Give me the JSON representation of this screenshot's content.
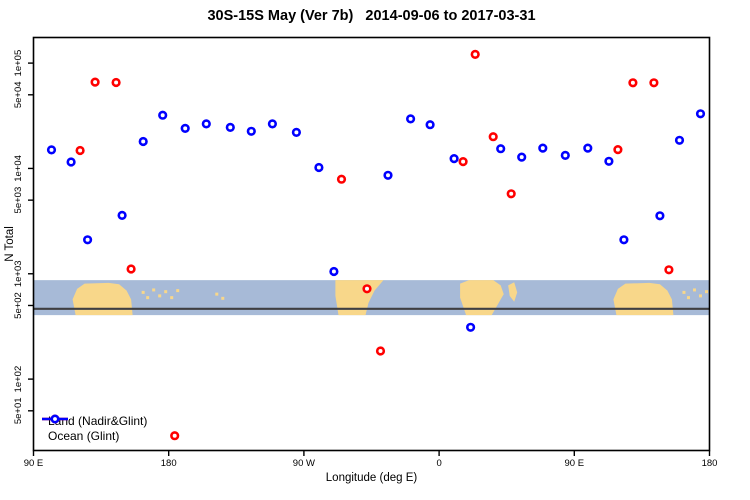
{
  "chart_data": {
    "type": "scatter",
    "title": "30S-15S May (Ver 7b)   2014-09-06 to 2017-03-31",
    "xlabel": "Longitude (deg E)",
    "ylabel": "N Total",
    "x_scale": "linear (longitude wrapped past 180)",
    "y_scale": "log",
    "xlim": [
      90,
      540
    ],
    "ylim": [
      21,
      175000
    ],
    "grid": false,
    "x_ticks": {
      "values": [
        90,
        180,
        270,
        360,
        450,
        540
      ],
      "labels": [
        "90 E",
        "180",
        "90 W",
        "0",
        "90 E",
        "180"
      ]
    },
    "y_ticks": {
      "values": [
        50,
        100,
        500,
        1000,
        5000,
        10000,
        50000,
        100000
      ],
      "labels": [
        "5e+01",
        "1e+02",
        "5e+02",
        "1e+03",
        "5e+03",
        "1e+04",
        "5e+04",
        "1e+05"
      ]
    },
    "legend_position": "bottom-left-inside",
    "marker": "open-circle-white-fill",
    "series": [
      {
        "name": "Land (Nadir&Glint)",
        "color": "#ff0000",
        "points": [
          [
            121,
            14800
          ],
          [
            131,
            66000
          ],
          [
            145,
            65500
          ],
          [
            155,
            1110
          ],
          [
            184,
            29
          ],
          [
            295,
            7900
          ],
          [
            312,
            720
          ],
          [
            321,
            185
          ],
          [
            376,
            11600
          ],
          [
            384,
            121000
          ],
          [
            396,
            20000
          ],
          [
            408,
            5750
          ],
          [
            479,
            15100
          ],
          [
            489,
            65000
          ],
          [
            503,
            65000
          ],
          [
            513,
            1090
          ]
        ]
      },
      {
        "name": "Ocean (Glint)",
        "color": "#0000ff",
        "points": [
          [
            102,
            15000
          ],
          [
            115,
            11500
          ],
          [
            126,
            2100
          ],
          [
            149,
            3580
          ],
          [
            163,
            18000
          ],
          [
            176,
            32000
          ],
          [
            191,
            24000
          ],
          [
            205,
            26500
          ],
          [
            221,
            24500
          ],
          [
            235,
            22500
          ],
          [
            249,
            26500
          ],
          [
            265,
            22000
          ],
          [
            280,
            10200
          ],
          [
            290,
            1050
          ],
          [
            326,
            8600
          ],
          [
            341,
            29500
          ],
          [
            354,
            26000
          ],
          [
            370,
            12400
          ],
          [
            381,
            310
          ],
          [
            401,
            15400
          ],
          [
            415,
            12800
          ],
          [
            429,
            15600
          ],
          [
            444,
            13300
          ],
          [
            459,
            15600
          ],
          [
            473,
            11700
          ],
          [
            483,
            2100
          ],
          [
            507,
            3550
          ],
          [
            520,
            18500
          ],
          [
            534,
            33000
          ]
        ]
      }
    ],
    "reference_band": {
      "description": "world-map strip of the 30S-15S latitude band drawn across the plot",
      "value_top": 870,
      "value_bottom": 405,
      "refline_value": 465,
      "ocean_color": "#a7bad7",
      "land_color": "#f8d78a",
      "refline_color": "#3f3f42",
      "land_polygons": [
        {
          "name": "australia",
          "pts": [
            [
              116,
              0.55
            ],
            [
              119,
              0.25
            ],
            [
              124,
              0.1
            ],
            [
              140,
              0.08
            ],
            [
              147,
              0.12
            ],
            [
              152,
              0.3
            ],
            [
              155,
              0.55
            ],
            [
              156,
              1
            ],
            [
              118,
              1
            ]
          ]
        },
        {
          "name": "south-america",
          "pts": [
            [
              291,
              0
            ],
            [
              323,
              0
            ],
            [
              317,
              0.3
            ],
            [
              313,
              0.65
            ],
            [
              311,
              1
            ],
            [
              293,
              1
            ],
            [
              291,
              0.45
            ]
          ]
        },
        {
          "name": "africa",
          "pts": [
            [
              374,
              0.1
            ],
            [
              380,
              0
            ],
            [
              396,
              0
            ],
            [
              401,
              0.15
            ],
            [
              403,
              0.4
            ],
            [
              399,
              0.7
            ],
            [
              395,
              1
            ],
            [
              378,
              1
            ],
            [
              374,
              0.5
            ]
          ]
        },
        {
          "name": "madagascar",
          "pts": [
            [
              406,
              0.15
            ],
            [
              410,
              0.06
            ],
            [
              412,
              0.35
            ],
            [
              410,
              0.62
            ],
            [
              407,
              0.45
            ]
          ]
        },
        {
          "name": "australia-wrapped",
          "pts": [
            [
              476,
              0.55
            ],
            [
              479,
              0.25
            ],
            [
              484,
              0.1
            ],
            [
              500,
              0.08
            ],
            [
              507,
              0.12
            ],
            [
              512,
              0.3
            ],
            [
              515,
              0.55
            ],
            [
              516,
              1
            ],
            [
              478,
              1
            ]
          ]
        }
      ],
      "island_dots": [
        [
          163,
          0.35
        ],
        [
          166,
          0.5
        ],
        [
          170,
          0.28
        ],
        [
          174,
          0.45
        ],
        [
          178,
          0.33
        ],
        [
          182,
          0.5
        ],
        [
          186,
          0.3
        ],
        [
          212,
          0.4
        ],
        [
          216,
          0.52
        ],
        [
          523,
          0.35
        ],
        [
          526,
          0.5
        ],
        [
          530,
          0.28
        ],
        [
          534,
          0.45
        ],
        [
          538,
          0.33
        ]
      ]
    }
  },
  "frame_color": "#000000",
  "text_color": "#000000"
}
